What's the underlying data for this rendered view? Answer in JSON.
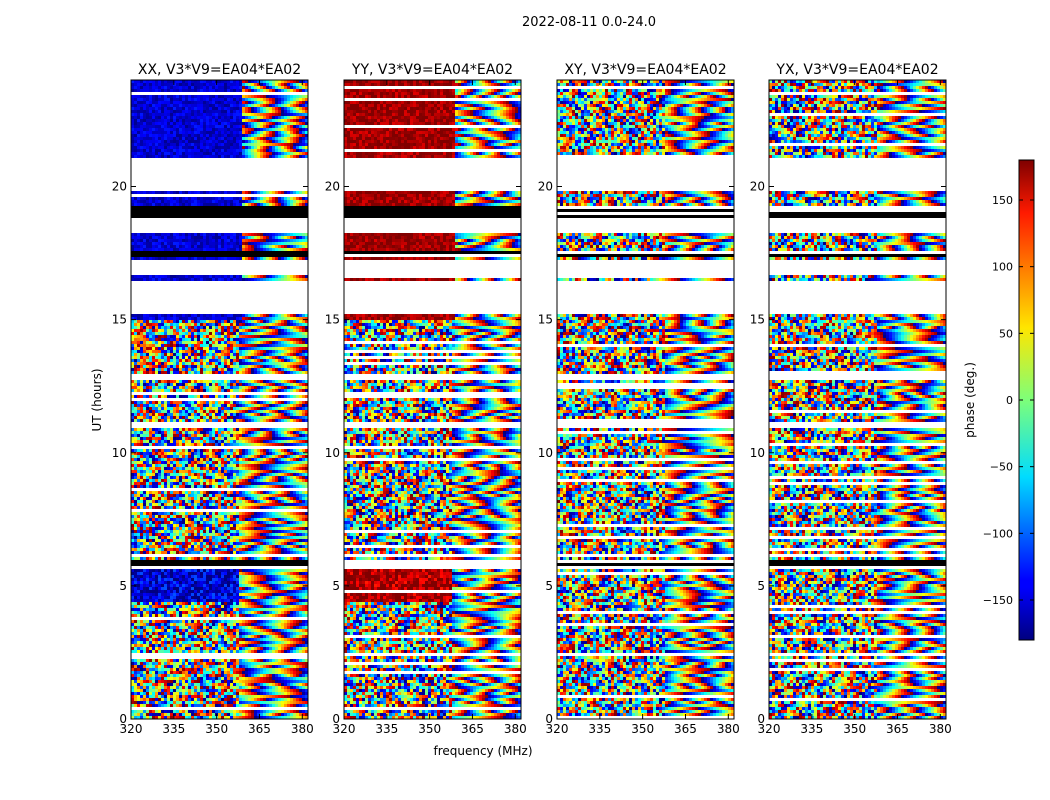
{
  "figure": {
    "title": "2022-08-11 0.0-24.0"
  },
  "chart_data": {
    "type": "heatmap",
    "date_range": "2022-08-11 0.0-24.0",
    "xlabel": "frequency (MHz)",
    "ylabel": "UT (hours)",
    "xlim": [
      320,
      382
    ],
    "ylim": [
      0,
      24
    ],
    "xticks": [
      "320",
      "335",
      "350",
      "365",
      "380"
    ],
    "yticks": [
      "0",
      "5",
      "10",
      "15",
      "20"
    ],
    "panels": [
      {
        "title": "XX, V3*V9=EA04*EA02",
        "polarization": "XX",
        "dominant_phase_low_freq": -150
      },
      {
        "title": "YY, V3*V9=EA04*EA02",
        "polarization": "YY",
        "dominant_phase_low_freq": 170
      },
      {
        "title": "XY, V3*V9=EA04*EA02",
        "polarization": "XY",
        "dominant_phase_low_freq": null
      },
      {
        "title": "YX, V3*V9=EA04*EA02",
        "polarization": "YX",
        "dominant_phase_low_freq": null
      }
    ],
    "colorbar": {
      "label": "phase (deg.)",
      "range": [
        -180,
        180
      ],
      "ticks": [
        "150",
        "100",
        "50",
        "0",
        "−50",
        "−100",
        "−150"
      ],
      "tick_values": [
        150,
        100,
        50,
        0,
        -50,
        -100,
        -150
      ],
      "colormap": "jet"
    },
    "flagged_ut_ranges": [
      [
        21.1,
        19.9
      ],
      [
        18.9,
        18.3
      ],
      [
        17.3,
        16.7
      ],
      [
        16.5,
        15.3
      ],
      [
        13.0,
        12.8
      ],
      [
        11.2,
        11.0
      ],
      [
        6.3,
        6.1
      ],
      [
        2.5,
        2.4
      ]
    ],
    "saturated_black_ut_ranges": [
      [
        19.3,
        18.9
      ],
      [
        17.6,
        17.4
      ],
      [
        6.0,
        5.7
      ]
    ]
  }
}
